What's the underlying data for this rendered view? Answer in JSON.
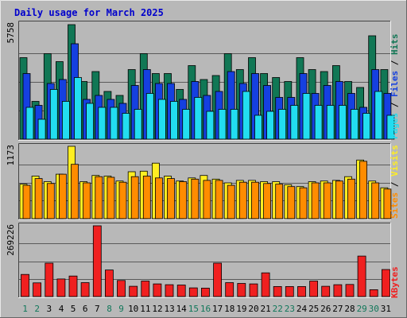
{
  "chart_data": {
    "type": "bar",
    "title": "Daily usage for March 2025",
    "days": [
      "1",
      "2",
      "3",
      "4",
      "5",
      "6",
      "7",
      "8",
      "9",
      "10",
      "11",
      "12",
      "13",
      "14",
      "15",
      "16",
      "17",
      "18",
      "19",
      "20",
      "21",
      "22",
      "23",
      "24",
      "25",
      "26",
      "27",
      "28",
      "29",
      "30",
      "31"
    ],
    "weekend_days": [
      "1",
      "2",
      "8",
      "9",
      "15",
      "16",
      "22",
      "23",
      "29",
      "30"
    ],
    "panels": [
      {
        "id": "hits",
        "max_label": "5758",
        "ymax": 5758,
        "series_labels": [
          "Pages",
          "Files",
          "Hits"
        ],
        "series": [
          {
            "name": "Hits",
            "color": "#117755",
            "values": [
              4100,
              1900,
              4300,
              3900,
              5758,
              2900,
              3400,
              2400,
              2200,
              3500,
              4300,
              3300,
              3300,
              2500,
              3700,
              3000,
              3200,
              4300,
              3500,
              4100,
              3300,
              3100,
              2900,
              4100,
              3500,
              3400,
              3700,
              2900,
              2600,
              5200,
              3500
            ]
          },
          {
            "name": "Files",
            "color": "#1540e0",
            "values": [
              3300,
              1700,
              2800,
              3000,
              4800,
              2000,
              2200,
              2000,
              1800,
              2700,
              3500,
              2800,
              2800,
              2000,
              2900,
              2200,
              2400,
              3400,
              2800,
              3300,
              2700,
              2100,
              2100,
              3300,
              2300,
              2700,
              2900,
              2300,
              1600,
              3500,
              2300
            ]
          },
          {
            "name": "Pages",
            "color": "#22ddf0",
            "values": [
              1600,
              1000,
              2500,
              1900,
              3100,
              1800,
              1600,
              1600,
              1300,
              1500,
              2300,
              2000,
              1900,
              1500,
              2100,
              1400,
              1500,
              1500,
              2400,
              1200,
              1400,
              1500,
              1700,
              2300,
              1700,
              1700,
              1700,
              1500,
              1300,
              2400,
              1200
            ]
          }
        ]
      },
      {
        "id": "visits",
        "max_label": "1173",
        "ymax": 1173,
        "series_labels": [
          "Sites",
          "Visits"
        ],
        "series": [
          {
            "name": "Visits",
            "color": "#ffee22",
            "values": [
              560,
              690,
              600,
              720,
              1173,
              600,
              700,
              690,
              610,
              760,
              770,
              900,
              690,
              610,
              660,
              700,
              640,
              580,
              620,
              620,
              600,
              600,
              550,
              520,
              600,
              610,
              620,
              680,
              950,
              610,
              500
            ]
          },
          {
            "name": "Sites",
            "color": "#ff8c00",
            "values": [
              540,
              650,
              570,
              720,
              880,
              580,
              680,
              670,
              590,
              680,
              690,
              660,
              650,
              600,
              640,
              620,
              620,
              540,
              590,
              590,
              570,
              560,
              520,
              500,
              580,
              580,
              610,
              640,
              930,
              580,
              480
            ]
          }
        ]
      },
      {
        "id": "kbytes",
        "max_label": "269226",
        "ymax": 269226,
        "series_labels": [
          "KBytes"
        ],
        "series": [
          {
            "name": "KBytes",
            "color": "#f02020",
            "values": [
              84000,
              52000,
              127000,
              67000,
              78000,
              53000,
              269226,
              101000,
              61000,
              39000,
              59000,
              48000,
              45000,
              44000,
              33000,
              32000,
              127000,
              53000,
              50000,
              48000,
              90000,
              38000,
              38000,
              38000,
              59000,
              39000,
              45000,
              46000,
              154000,
              26000,
              103000
            ]
          }
        ]
      }
    ]
  }
}
